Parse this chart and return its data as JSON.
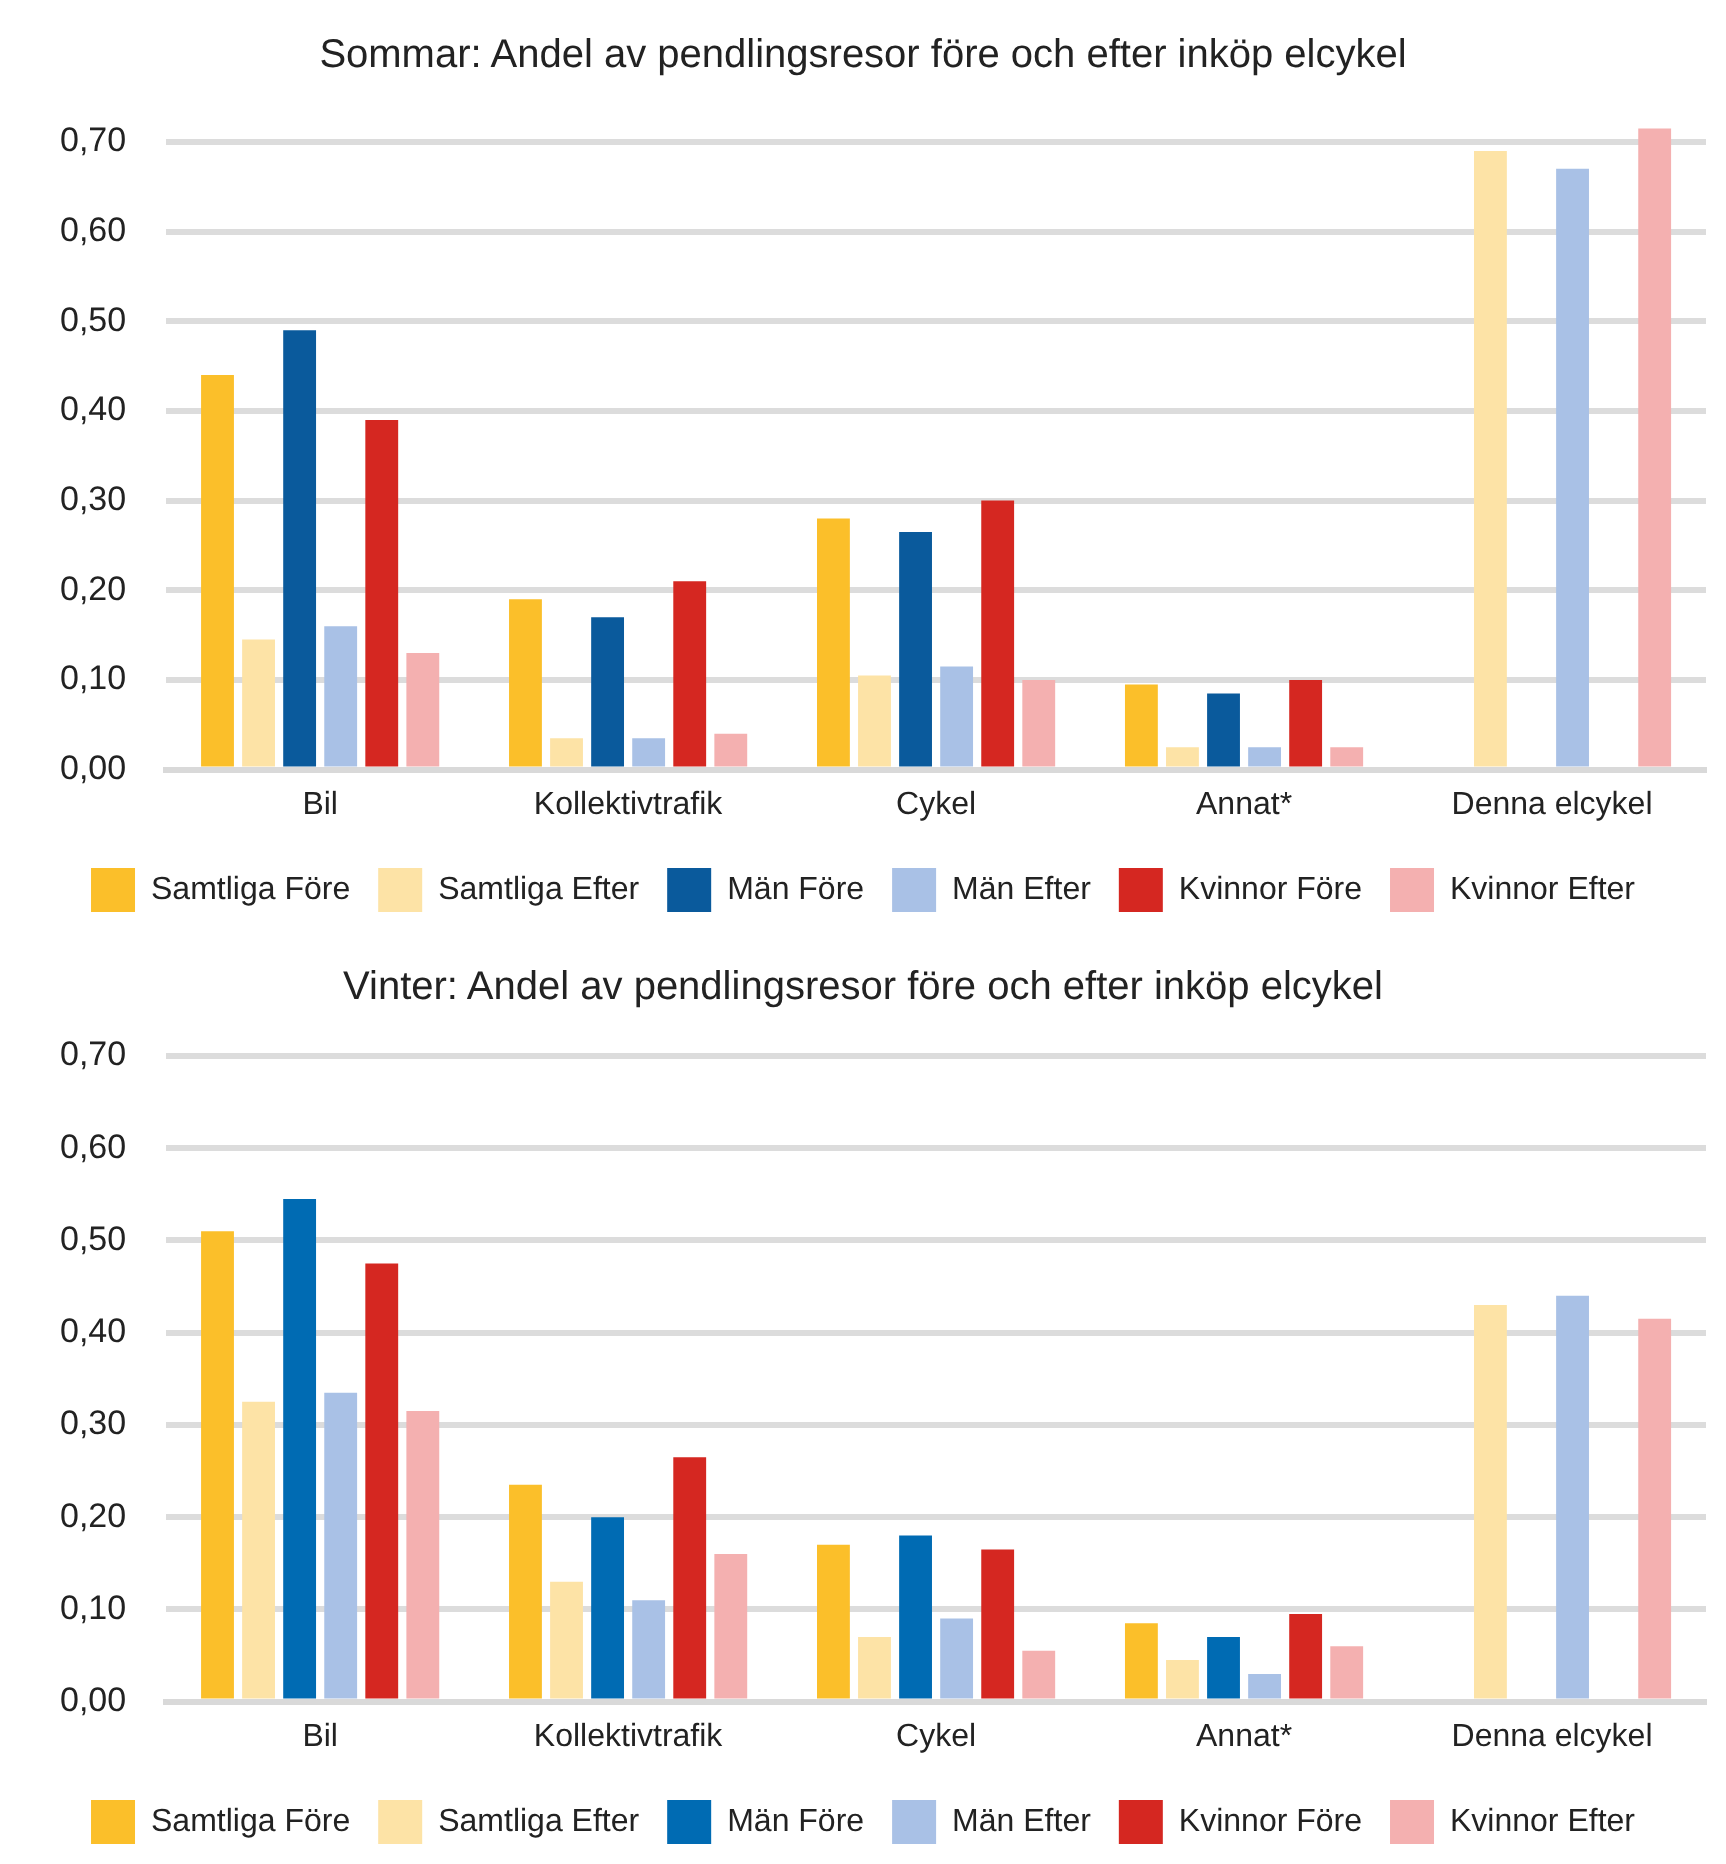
{
  "chart_data": [
    {
      "type": "bar",
      "title": "Sommar: Andel av pendlingsresor före och efter inköp elcykel",
      "categories": [
        "Bil",
        "Kollektivtrafik",
        "Cykel",
        "Annat*",
        "Denna elcykel"
      ],
      "series": [
        {
          "name": "Samtliga Före",
          "color": "#fbbf2a",
          "values": [
            0.44,
            0.19,
            0.28,
            0.095,
            null
          ]
        },
        {
          "name": "Samtliga Efter",
          "color": "#fde3a6",
          "values": [
            0.145,
            0.035,
            0.105,
            0.025,
            0.69
          ]
        },
        {
          "name": "Män Före",
          "color": "#0a5a9c",
          "values": [
            0.49,
            0.17,
            0.265,
            0.085,
            null
          ]
        },
        {
          "name": "Män Efter",
          "color": "#a9c1e6",
          "values": [
            0.16,
            0.035,
            0.115,
            0.025,
            0.67
          ]
        },
        {
          "name": "Kvinnor Före",
          "color": "#d52721",
          "values": [
            0.39,
            0.21,
            0.3,
            0.1,
            null
          ]
        },
        {
          "name": "Kvinnor Efter",
          "color": "#f4b0b0",
          "values": [
            0.13,
            0.04,
            0.1,
            0.025,
            0.715
          ]
        }
      ],
      "ylim": [
        0,
        0.72
      ],
      "yticks": [
        {
          "value": 0,
          "label": "0,00"
        },
        {
          "value": 0.1,
          "label": "0,10"
        },
        {
          "value": 0.2,
          "label": "0,20"
        },
        {
          "value": 0.3,
          "label": "0,30"
        },
        {
          "value": 0.4,
          "label": "0,40"
        },
        {
          "value": 0.5,
          "label": "0,50"
        },
        {
          "value": 0.6,
          "label": "0,60"
        },
        {
          "value": 0.7,
          "label": "0,70"
        }
      ],
      "grid": "y",
      "legend": "bottom"
    },
    {
      "type": "bar",
      "title": "Vinter: Andel av pendlingsresor före och efter inköp elcykel",
      "categories": [
        "Bil",
        "Kollektivtrafik",
        "Cykel",
        "Annat*",
        "Denna elcykel"
      ],
      "series": [
        {
          "name": "Samtliga Före",
          "color": "#fbbf2a",
          "values": [
            0.51,
            0.235,
            0.17,
            0.085,
            null
          ]
        },
        {
          "name": "Samtliga Efter",
          "color": "#fde3a6",
          "values": [
            0.325,
            0.13,
            0.07,
            0.045,
            0.43
          ]
        },
        {
          "name": "Män Före",
          "color": "#006bb3",
          "values": [
            0.545,
            0.2,
            0.18,
            0.07,
            null
          ]
        },
        {
          "name": "Män Efter",
          "color": "#a9c1e6",
          "values": [
            0.335,
            0.11,
            0.09,
            0.03,
            0.44
          ]
        },
        {
          "name": "Kvinnor Före",
          "color": "#d52721",
          "values": [
            0.475,
            0.265,
            0.165,
            0.095,
            null
          ]
        },
        {
          "name": "Kvinnor Efter",
          "color": "#f4b0b0",
          "values": [
            0.315,
            0.16,
            0.055,
            0.06,
            0.415
          ]
        }
      ],
      "ylim": [
        0,
        0.7
      ],
      "yticks": [
        {
          "value": 0,
          "label": "0,00"
        },
        {
          "value": 0.1,
          "label": "0,10"
        },
        {
          "value": 0.2,
          "label": "0,20"
        },
        {
          "value": 0.3,
          "label": "0,30"
        },
        {
          "value": 0.4,
          "label": "0,40"
        },
        {
          "value": 0.5,
          "label": "0,50"
        },
        {
          "value": 0.6,
          "label": "0,60"
        },
        {
          "value": 0.7,
          "label": "0,70"
        }
      ],
      "grid": "y",
      "legend": "bottom"
    }
  ]
}
